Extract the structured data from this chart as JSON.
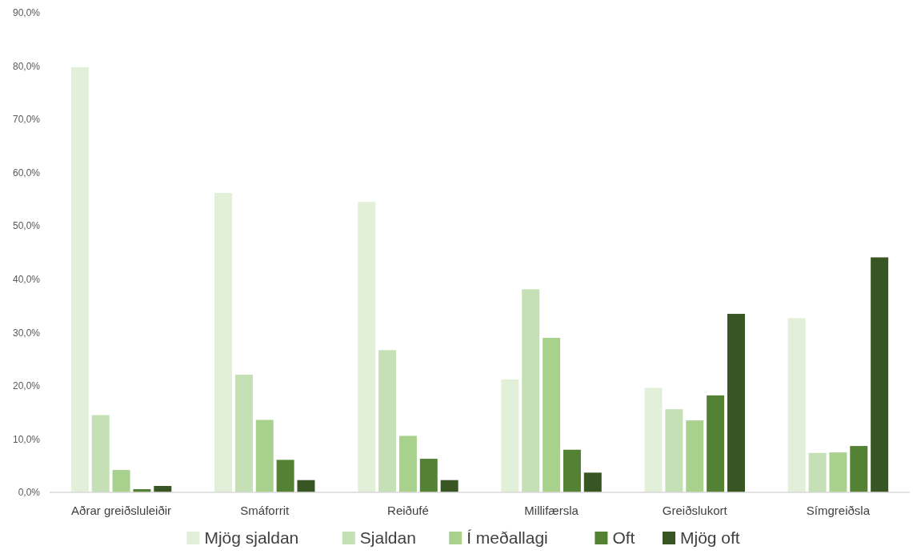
{
  "chart_data": {
    "type": "bar",
    "categories": [
      "Aðrar greiðsluleiðir",
      "Smáforrit",
      "Reiðufé",
      "Millifærsla",
      "Greiðslukort",
      "Símgreiðsla"
    ],
    "series": [
      {
        "name": "Mjög sjaldan",
        "color": "#e2efd9",
        "values": [
          79.8,
          56.2,
          54.5,
          21.2,
          19.6,
          32.7
        ]
      },
      {
        "name": "Sjaldan",
        "color": "#c5e0b4",
        "values": [
          14.5,
          22.1,
          26.7,
          38.1,
          15.6,
          7.4
        ]
      },
      {
        "name": "Í meðallagi",
        "color": "#a9d18e",
        "values": [
          4.2,
          13.6,
          10.6,
          29.0,
          13.5,
          7.5
        ]
      },
      {
        "name": "Oft",
        "color": "#548235",
        "values": [
          0.6,
          6.1,
          6.3,
          8.0,
          18.2,
          8.7
        ]
      },
      {
        "name": "Mjög oft",
        "color": "#375623",
        "values": [
          1.2,
          2.3,
          2.3,
          3.7,
          33.5,
          44.1
        ]
      }
    ],
    "ylim": [
      0,
      90
    ],
    "yticks": [
      {
        "value": 0,
        "label": "0,0%"
      },
      {
        "value": 10,
        "label": "10,0%"
      },
      {
        "value": 20,
        "label": "20,0%"
      },
      {
        "value": 30,
        "label": "30,0%"
      },
      {
        "value": 40,
        "label": "40,0%"
      },
      {
        "value": 50,
        "label": "50,0%"
      },
      {
        "value": 60,
        "label": "60,0%"
      },
      {
        "value": 70,
        "label": "70,0%"
      },
      {
        "value": 80,
        "label": "80,0%"
      },
      {
        "value": 90,
        "label": "90,0%"
      }
    ],
    "grid": false,
    "legend": "bottom"
  }
}
